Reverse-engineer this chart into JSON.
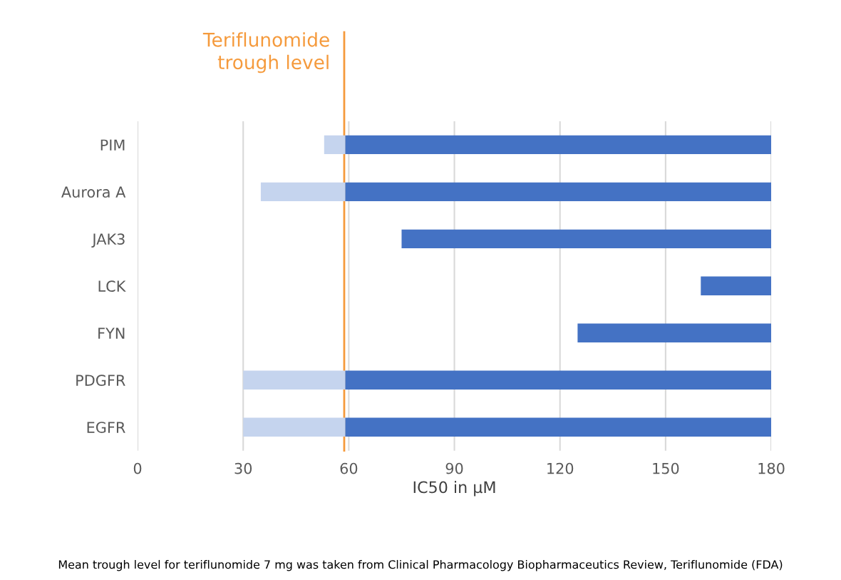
{
  "chart_data": {
    "type": "bar",
    "orientation": "horizontal",
    "xlabel": "IC50 in µM",
    "categories": [
      "PIM",
      "Aurora A",
      "JAK3",
      "LCK",
      "FYN",
      "PDGFR",
      "EGFR"
    ],
    "series": [
      {
        "color": "#c5d4ee",
        "base": [
          53,
          35,
          null,
          null,
          null,
          30,
          30
        ],
        "values": [
          6,
          24,
          null,
          null,
          null,
          29,
          29
        ]
      },
      {
        "color": "#4472c4",
        "base": [
          59,
          59,
          75,
          160,
          125,
          59,
          59
        ],
        "values": [
          121,
          121,
          105,
          20,
          55,
          121,
          121
        ]
      }
    ],
    "xlim": [
      0,
      180
    ],
    "xticks": [
      0,
      30,
      60,
      90,
      120,
      150,
      180
    ],
    "grid": "x",
    "legend": false,
    "ref_lines": [
      {
        "axis": "x",
        "value": 58.7,
        "label": "Teriflunomide\ntrough level",
        "color": "#f59a3c"
      }
    ],
    "annotations": [
      "Mean trough level for teriflunomide 7 mg was taken from Clinical Pharmacology Biopharmaceutics Review, Teriflunomide (FDA)"
    ]
  }
}
